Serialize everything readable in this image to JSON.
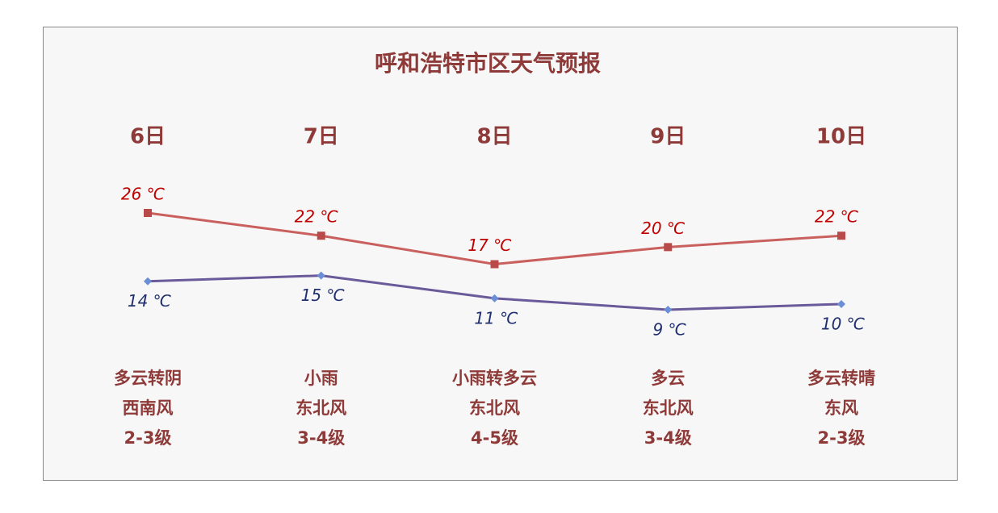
{
  "chart_data": {
    "type": "line",
    "title": "呼和浩特市区天气预报",
    "categories": [
      "6日",
      "7日",
      "8日",
      "9日",
      "10日"
    ],
    "series": [
      {
        "color": "#c9605e",
        "marker_color": "#b84a4a",
        "label_color": "#c00000",
        "values": [
          26,
          22,
          17,
          20,
          22
        ],
        "value_labels": [
          "26 ℃",
          "22 ℃",
          "17 ℃",
          "20 ℃",
          "22 ℃"
        ]
      },
      {
        "color": "#6a5a9a",
        "marker_color": "#6b8fd6",
        "label_color": "#1f2f6f",
        "values": [
          14,
          15,
          11,
          9,
          10
        ],
        "value_labels": [
          "14 ℃",
          "15 ℃",
          "11 ℃",
          "9 ℃",
          "10 ℃"
        ]
      }
    ],
    "weather": [
      "多云转阴",
      "小雨",
      "小雨转多云",
      "多云",
      "多云转晴"
    ],
    "wind": [
      "西南风",
      "东北风",
      "东北风",
      "东北风",
      "东风"
    ],
    "wind_level": [
      "2-3级",
      "3-4级",
      "4-5级",
      "3-4级",
      "2-3级"
    ]
  }
}
